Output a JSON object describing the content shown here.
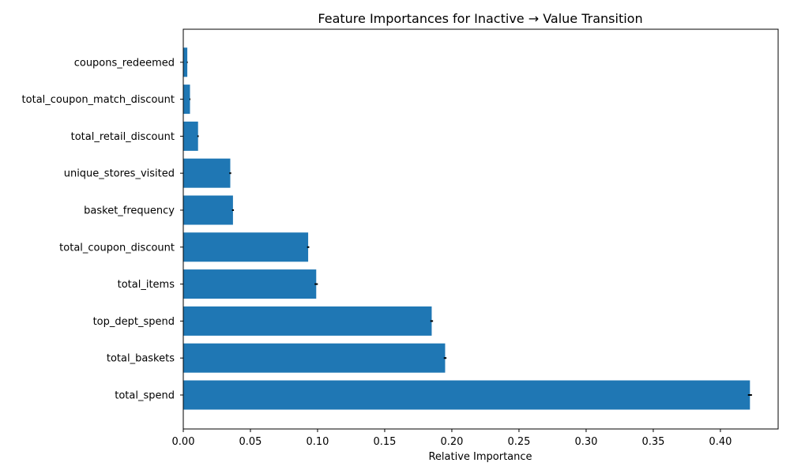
{
  "chart_data": {
    "type": "bar",
    "orientation": "horizontal",
    "title": "Feature Importances for Inactive → Value Transition",
    "xlabel": "Relative Importance",
    "ylabel": "",
    "xlim": [
      0,
      0.443
    ],
    "xticks": [
      "0.00",
      "0.05",
      "0.10",
      "0.15",
      "0.20",
      "0.25",
      "0.30",
      "0.35",
      "0.40"
    ],
    "grid": false,
    "legend": "none",
    "bar_color": "#1f77b4",
    "error_bar_color": "#000000",
    "categories": [
      "coupons_redeemed",
      "total_coupon_match_discount",
      "total_retail_discount",
      "unique_stores_visited",
      "basket_frequency",
      "total_coupon_discount",
      "total_items",
      "top_dept_spend",
      "total_baskets",
      "total_spend"
    ],
    "values": [
      0.003,
      0.005,
      0.011,
      0.035,
      0.037,
      0.093,
      0.099,
      0.185,
      0.195,
      0.422
    ],
    "errors": [
      0.0003,
      0.0003,
      0.0005,
      0.0007,
      0.0007,
      0.0008,
      0.0012,
      0.001,
      0.001,
      0.0015
    ]
  }
}
